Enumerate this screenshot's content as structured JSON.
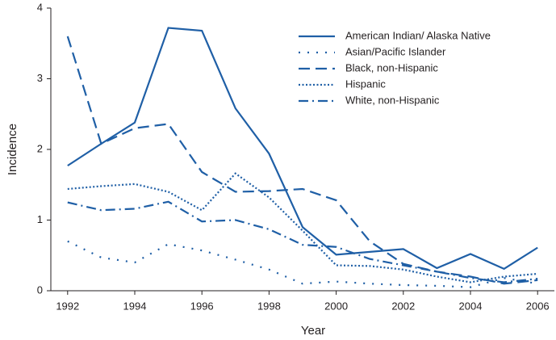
{
  "chart_data": {
    "type": "line",
    "xlabel": "Year",
    "ylabel": "Incidence",
    "x": [
      1992,
      1993,
      1994,
      1995,
      1996,
      1997,
      1998,
      1999,
      2000,
      2001,
      2002,
      2003,
      2004,
      2005,
      2006
    ],
    "xlim": [
      1991.5,
      2006.5
    ],
    "xticks": [
      1992,
      1994,
      1996,
      1998,
      2000,
      2002,
      2004,
      2006
    ],
    "ylim": [
      0,
      4
    ],
    "yticks": [
      0,
      1,
      2,
      3,
      4
    ],
    "grid": false,
    "legend": "upper right",
    "series": [
      {
        "name": "American Indian/ Alaska Native",
        "color": "#1f5fa6",
        "dash": "solid",
        "values": [
          1.77,
          2.08,
          2.38,
          3.72,
          3.68,
          2.58,
          1.94,
          0.9,
          0.51,
          0.55,
          0.59,
          0.32,
          0.52,
          0.31,
          0.61
        ]
      },
      {
        "name": "Asian/Pacific Islander",
        "color": "#1f5fa6",
        "dash": "dotted-wide",
        "values": [
          0.7,
          0.47,
          0.4,
          0.66,
          0.57,
          0.44,
          0.3,
          0.1,
          0.13,
          0.1,
          0.08,
          0.07,
          0.05,
          0.18,
          0.1
        ]
      },
      {
        "name": "Black, non-Hispanic",
        "color": "#1f5fa6",
        "dash": "dashed",
        "values": [
          3.6,
          2.08,
          2.3,
          2.36,
          1.68,
          1.4,
          1.41,
          1.44,
          1.28,
          0.7,
          0.38,
          0.27,
          0.2,
          0.1,
          0.15
        ]
      },
      {
        "name": "Hispanic",
        "color": "#1f5fa6",
        "dash": "dotted",
        "values": [
          1.44,
          1.48,
          1.51,
          1.4,
          1.14,
          1.66,
          1.32,
          0.85,
          0.36,
          0.35,
          0.3,
          0.2,
          0.12,
          0.2,
          0.24
        ]
      },
      {
        "name": "White, non-Hispanic",
        "color": "#1f5fa6",
        "dash": "dashdot",
        "values": [
          1.25,
          1.14,
          1.16,
          1.26,
          0.98,
          1.0,
          0.87,
          0.65,
          0.62,
          0.45,
          0.36,
          0.27,
          0.18,
          0.12,
          0.17
        ]
      }
    ]
  }
}
